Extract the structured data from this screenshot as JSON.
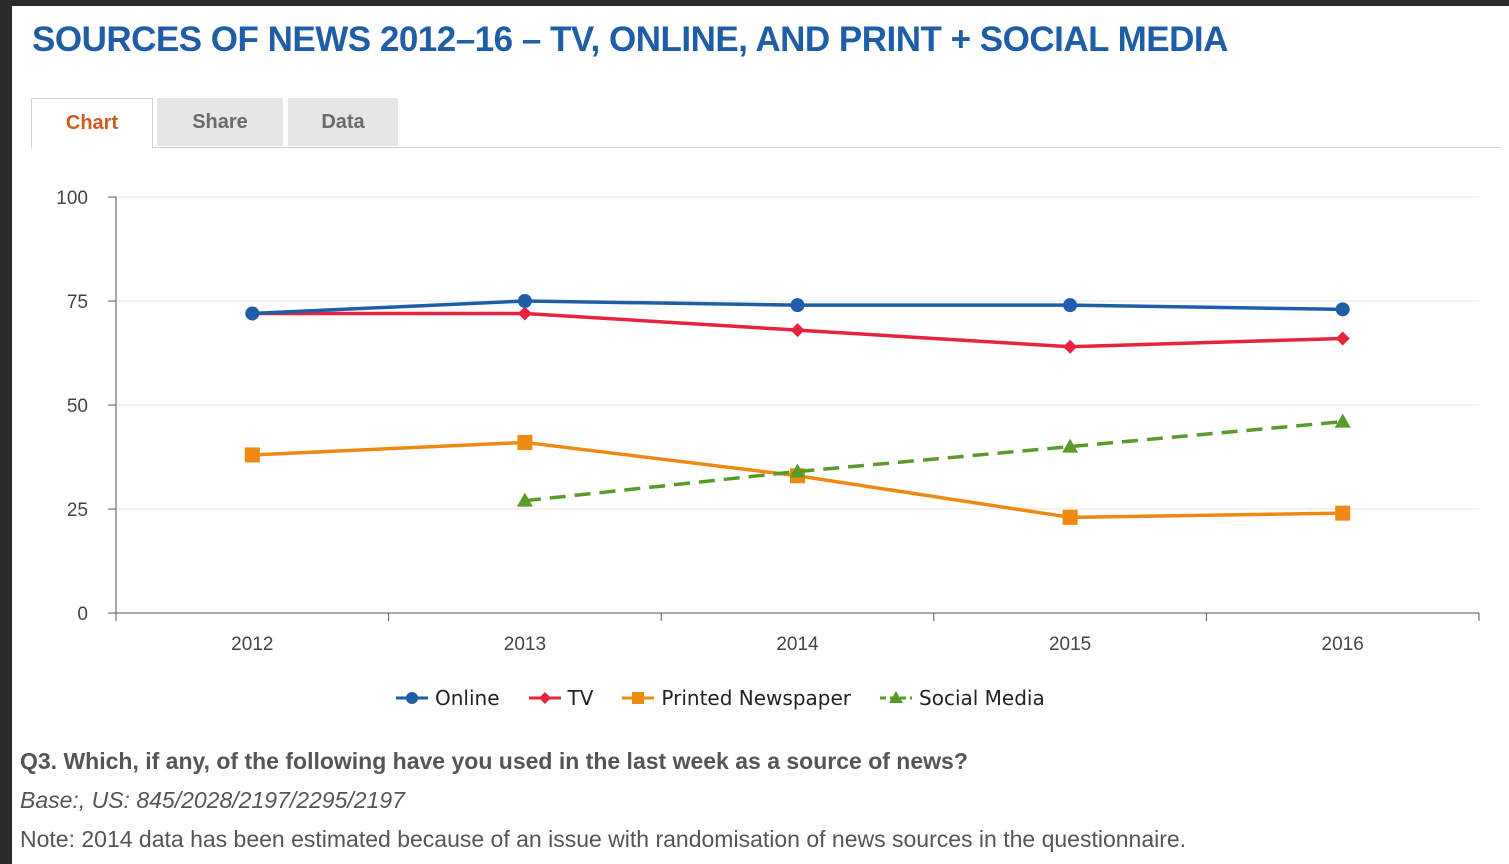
{
  "page": {
    "title": "SOURCES OF NEWS 2012–16 – TV, ONLINE, AND PRINT + SOCIAL MEDIA",
    "tabs": [
      {
        "label": "Chart",
        "active": true
      },
      {
        "label": "Share",
        "active": false
      },
      {
        "label": "Data",
        "active": false
      }
    ],
    "question": "Q3. Which, if any, of the following have you used in the last week as a source of news?",
    "base": "Base:, US: 845/2028/2197/2295/2197",
    "note": "Note: 2014 data has been estimated because of an issue with randomisation of news sources in the questionnaire."
  },
  "chart_data": {
    "type": "line",
    "title": "",
    "xlabel": "",
    "ylabel": "",
    "categories": [
      "2012",
      "2013",
      "2014",
      "2015",
      "2016"
    ],
    "ylim": [
      0,
      100
    ],
    "yticks": [
      0,
      25,
      50,
      75,
      100
    ],
    "grid": true,
    "legend_position": "bottom",
    "series": [
      {
        "name": "Online",
        "color": "#1f5ea6",
        "marker": "circle",
        "dashed": false,
        "values": [
          72,
          75,
          74,
          74,
          73
        ]
      },
      {
        "name": "TV",
        "color": "#e8233f",
        "marker": "diamond",
        "dashed": false,
        "values": [
          72,
          72,
          68,
          64,
          66
        ]
      },
      {
        "name": "Printed Newspaper",
        "color": "#ee8a12",
        "marker": "square",
        "dashed": false,
        "values": [
          38,
          41,
          33,
          23,
          24
        ]
      },
      {
        "name": "Social Media",
        "color": "#5a9a2b",
        "marker": "triangle",
        "dashed": true,
        "values": [
          null,
          27,
          34,
          40,
          46
        ]
      }
    ]
  }
}
